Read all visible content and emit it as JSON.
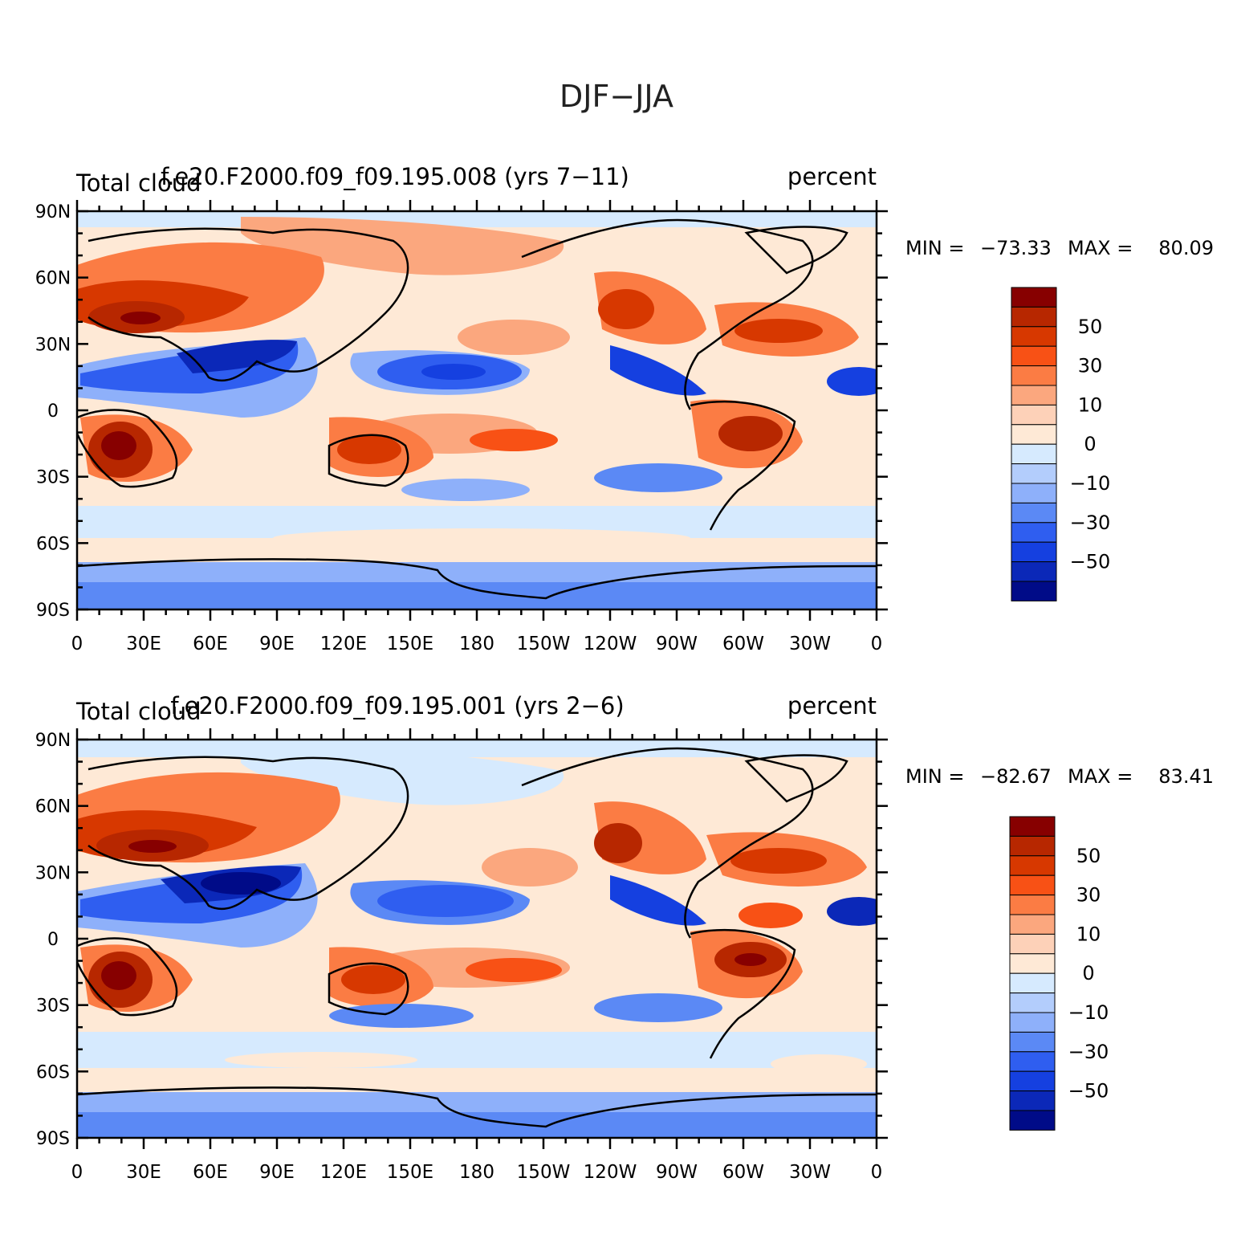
{
  "figure": {
    "title": "DJF−JJA"
  },
  "panels": [
    {
      "left_label": "Total cloud",
      "center_label": "f.e20.F2000.f09_f09.195.008 (yrs 7−11)",
      "right_label": "percent",
      "stats": {
        "min_label": "MIN =",
        "min": "−73.33",
        "max_label": "MAX =",
        "max": "80.09"
      }
    },
    {
      "left_label": "Total cloud",
      "center_label": "f.e20.F2000.f09_f09.195.001 (yrs 2−6)",
      "right_label": "percent",
      "stats": {
        "min_label": "MIN =",
        "min": "−82.67",
        "max_label": "MAX =",
        "max": "83.41"
      }
    }
  ],
  "axes": {
    "lon_ticks": [
      "0",
      "30E",
      "60E",
      "90E",
      "120E",
      "150E",
      "180",
      "150W",
      "120W",
      "90W",
      "60W",
      "30W",
      "0"
    ],
    "lat_ticks": [
      "90N",
      "60N",
      "30N",
      "0",
      "30S",
      "60S",
      "90S"
    ]
  },
  "colorbar": {
    "colors": [
      "#870000",
      "#b72700",
      "#d73800",
      "#f85115",
      "#fb7c44",
      "#fba77e",
      "#fdd1b8",
      "#fee9d6",
      "#d6eafe",
      "#b3cdfc",
      "#8eb0fa",
      "#5b89f5",
      "#2f5ef0",
      "#1540e0",
      "#0b28b8",
      "#000b88"
    ],
    "labels": [
      "50",
      "30",
      "10",
      "0",
      "−10",
      "−30",
      "−50"
    ]
  }
}
